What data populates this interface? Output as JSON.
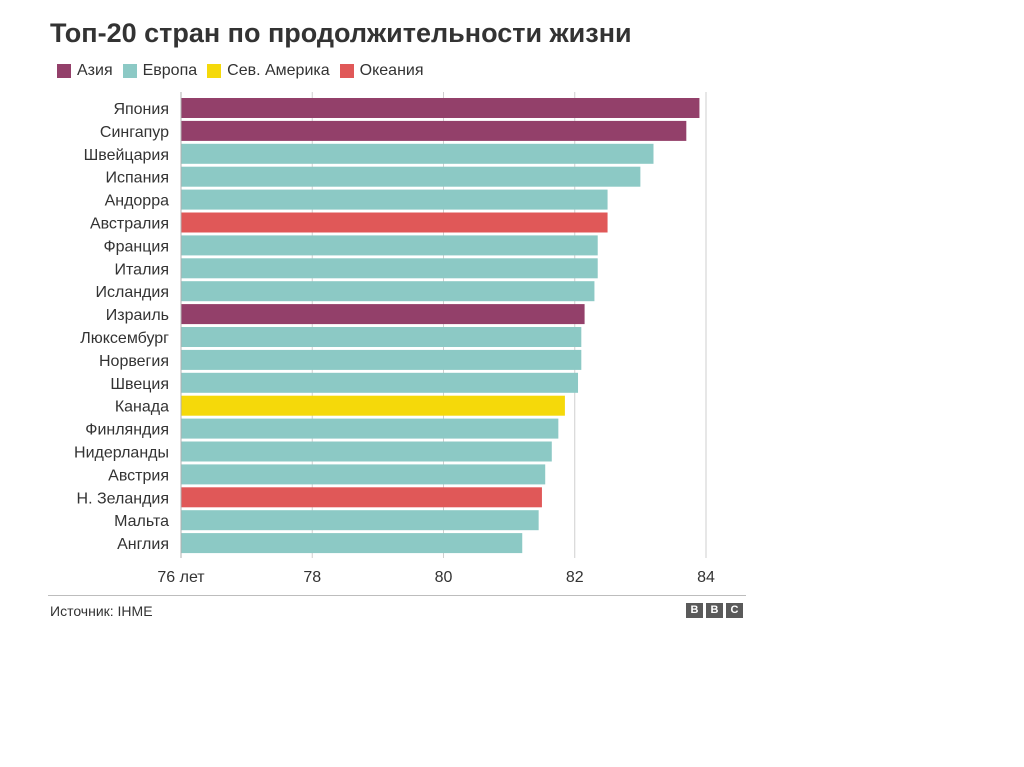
{
  "chart_data": {
    "type": "bar",
    "orientation": "horizontal",
    "title": "Топ-20 стран по продолжительности жизни",
    "legend": [
      {
        "name": "Азия",
        "color": "#93406a"
      },
      {
        "name": "Европа",
        "color": "#8cc9c5"
      },
      {
        "name": "Сев. Америка",
        "color": "#f5d90a"
      },
      {
        "name": "Океания",
        "color": "#e05858"
      }
    ],
    "categories": [
      "Япония",
      "Сингапур",
      "Швейцария",
      "Испания",
      "Андорра",
      "Австралия",
      "Франция",
      "Италия",
      "Исландия",
      "Израиль",
      "Люксембург",
      "Норвегия",
      "Швеция",
      "Канада",
      "Финляндия",
      "Нидерланды",
      "Австрия",
      "Н. Зеландия",
      "Мальта",
      "Англия"
    ],
    "regions": [
      "Азия",
      "Азия",
      "Европа",
      "Европа",
      "Европа",
      "Океания",
      "Европа",
      "Европа",
      "Европа",
      "Азия",
      "Европа",
      "Европа",
      "Европа",
      "Сев. Америка",
      "Европа",
      "Европа",
      "Европа",
      "Океания",
      "Европа",
      "Европа"
    ],
    "values": [
      83.9,
      83.7,
      83.2,
      83.0,
      82.5,
      82.5,
      82.35,
      82.35,
      82.3,
      82.15,
      82.1,
      82.1,
      82.05,
      81.85,
      81.75,
      81.65,
      81.55,
      81.5,
      81.45,
      81.2
    ],
    "xlim": [
      76,
      84
    ],
    "xticks": [
      76,
      78,
      80,
      82,
      84
    ],
    "xtick_labels": [
      "76 лет",
      "78",
      "80",
      "82",
      "84"
    ],
    "xlabel": "",
    "ylabel": "",
    "grid": true
  },
  "footer": {
    "source": "Источник: IHME",
    "brand": [
      "B",
      "B",
      "C"
    ]
  }
}
